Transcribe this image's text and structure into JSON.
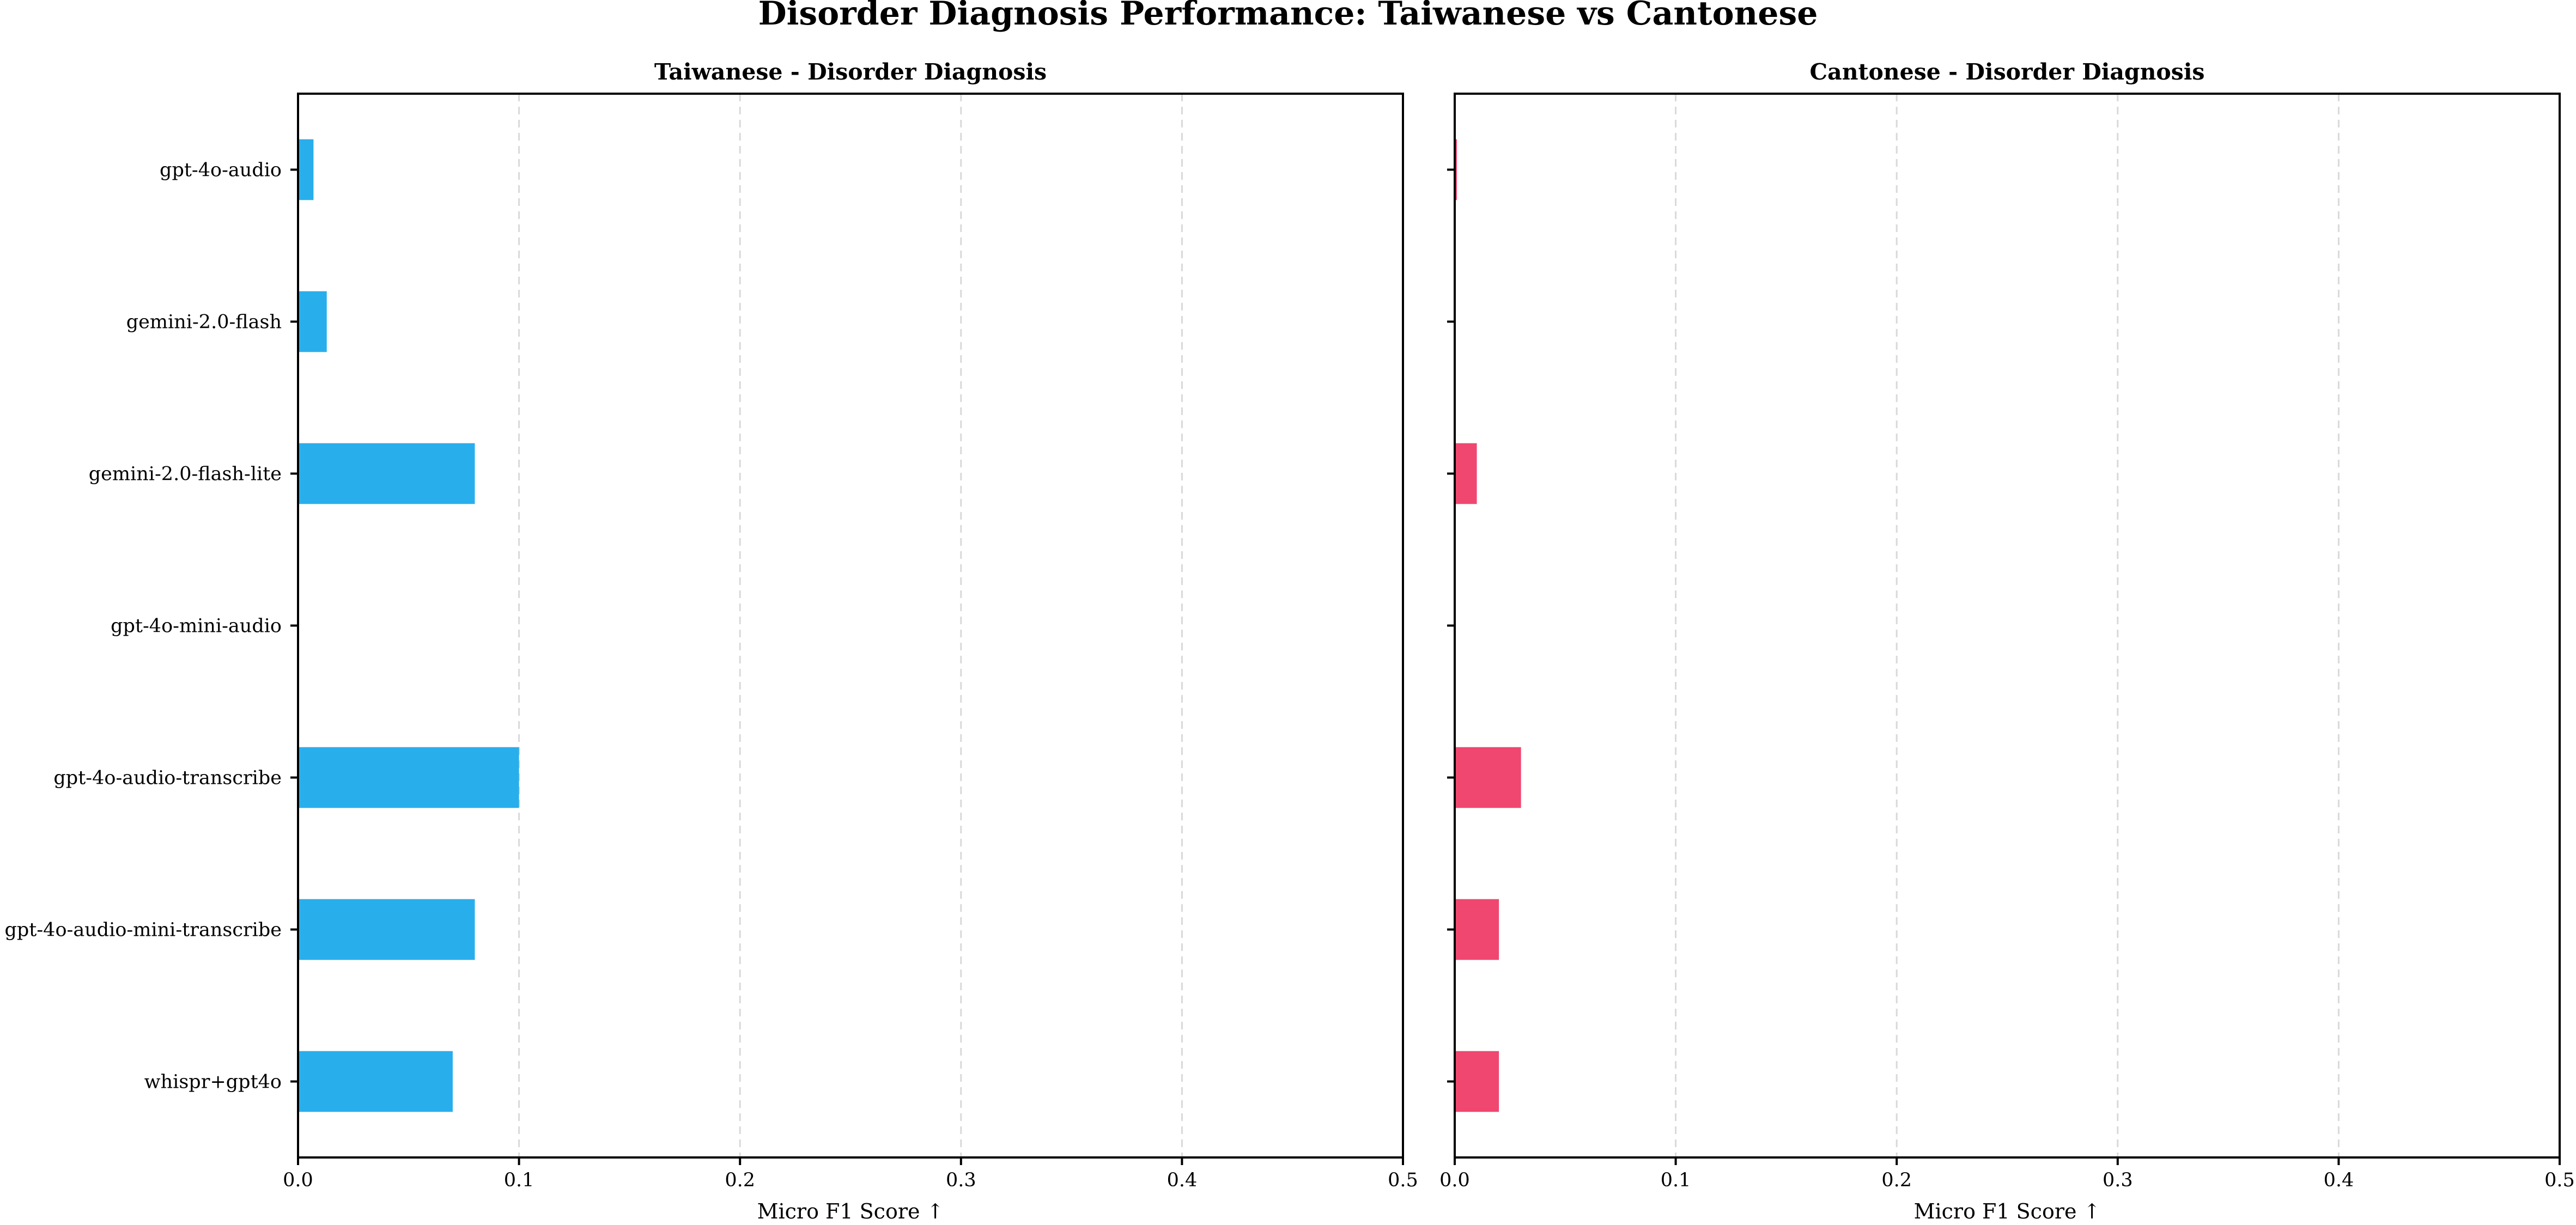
{
  "figure": {
    "suptitle": "Disorder Diagnosis Performance: Taiwanese vs Cantonese"
  },
  "chart_data": [
    {
      "type": "bar",
      "orientation": "horizontal",
      "title": "Taiwanese - Disorder Diagnosis",
      "xlabel": "Micro F1 Score ↑",
      "ylabel": "",
      "xlim": [
        0,
        0.5
      ],
      "xticks": [
        "0.0",
        "0.1",
        "0.2",
        "0.3",
        "0.4",
        "0.5"
      ],
      "grid": "x, dashed",
      "color": "#29aeec",
      "categories": [
        "gpt-4o-audio",
        "gemini-2.0-flash",
        "gemini-2.0-flash-lite",
        "gpt-4o-mini-audio",
        "gpt-4o-audio-transcribe",
        "gpt-4o-audio-mini-transcribe",
        "whispr+gpt4o"
      ],
      "values": [
        0.007,
        0.013,
        0.08,
        0.0,
        0.1,
        0.08,
        0.07
      ]
    },
    {
      "type": "bar",
      "orientation": "horizontal",
      "title": "Cantonese - Disorder Diagnosis",
      "xlabel": "Micro F1 Score ↑",
      "ylabel": "",
      "xlim": [
        0,
        0.5
      ],
      "xticks": [
        "0.0",
        "0.1",
        "0.2",
        "0.3",
        "0.4",
        "0.5"
      ],
      "grid": "x, dashed",
      "color": "#ef476f",
      "categories": [
        "gpt-4o-audio",
        "gemini-2.0-flash",
        "gemini-2.0-flash-lite",
        "gpt-4o-mini-audio",
        "gpt-4o-audio-transcribe",
        "gpt-4o-audio-mini-transcribe",
        "whispr+gpt4o"
      ],
      "values": [
        0.001,
        0.0,
        0.01,
        0.0,
        0.03,
        0.02,
        0.02
      ],
      "shared_y_labels": true
    }
  ]
}
